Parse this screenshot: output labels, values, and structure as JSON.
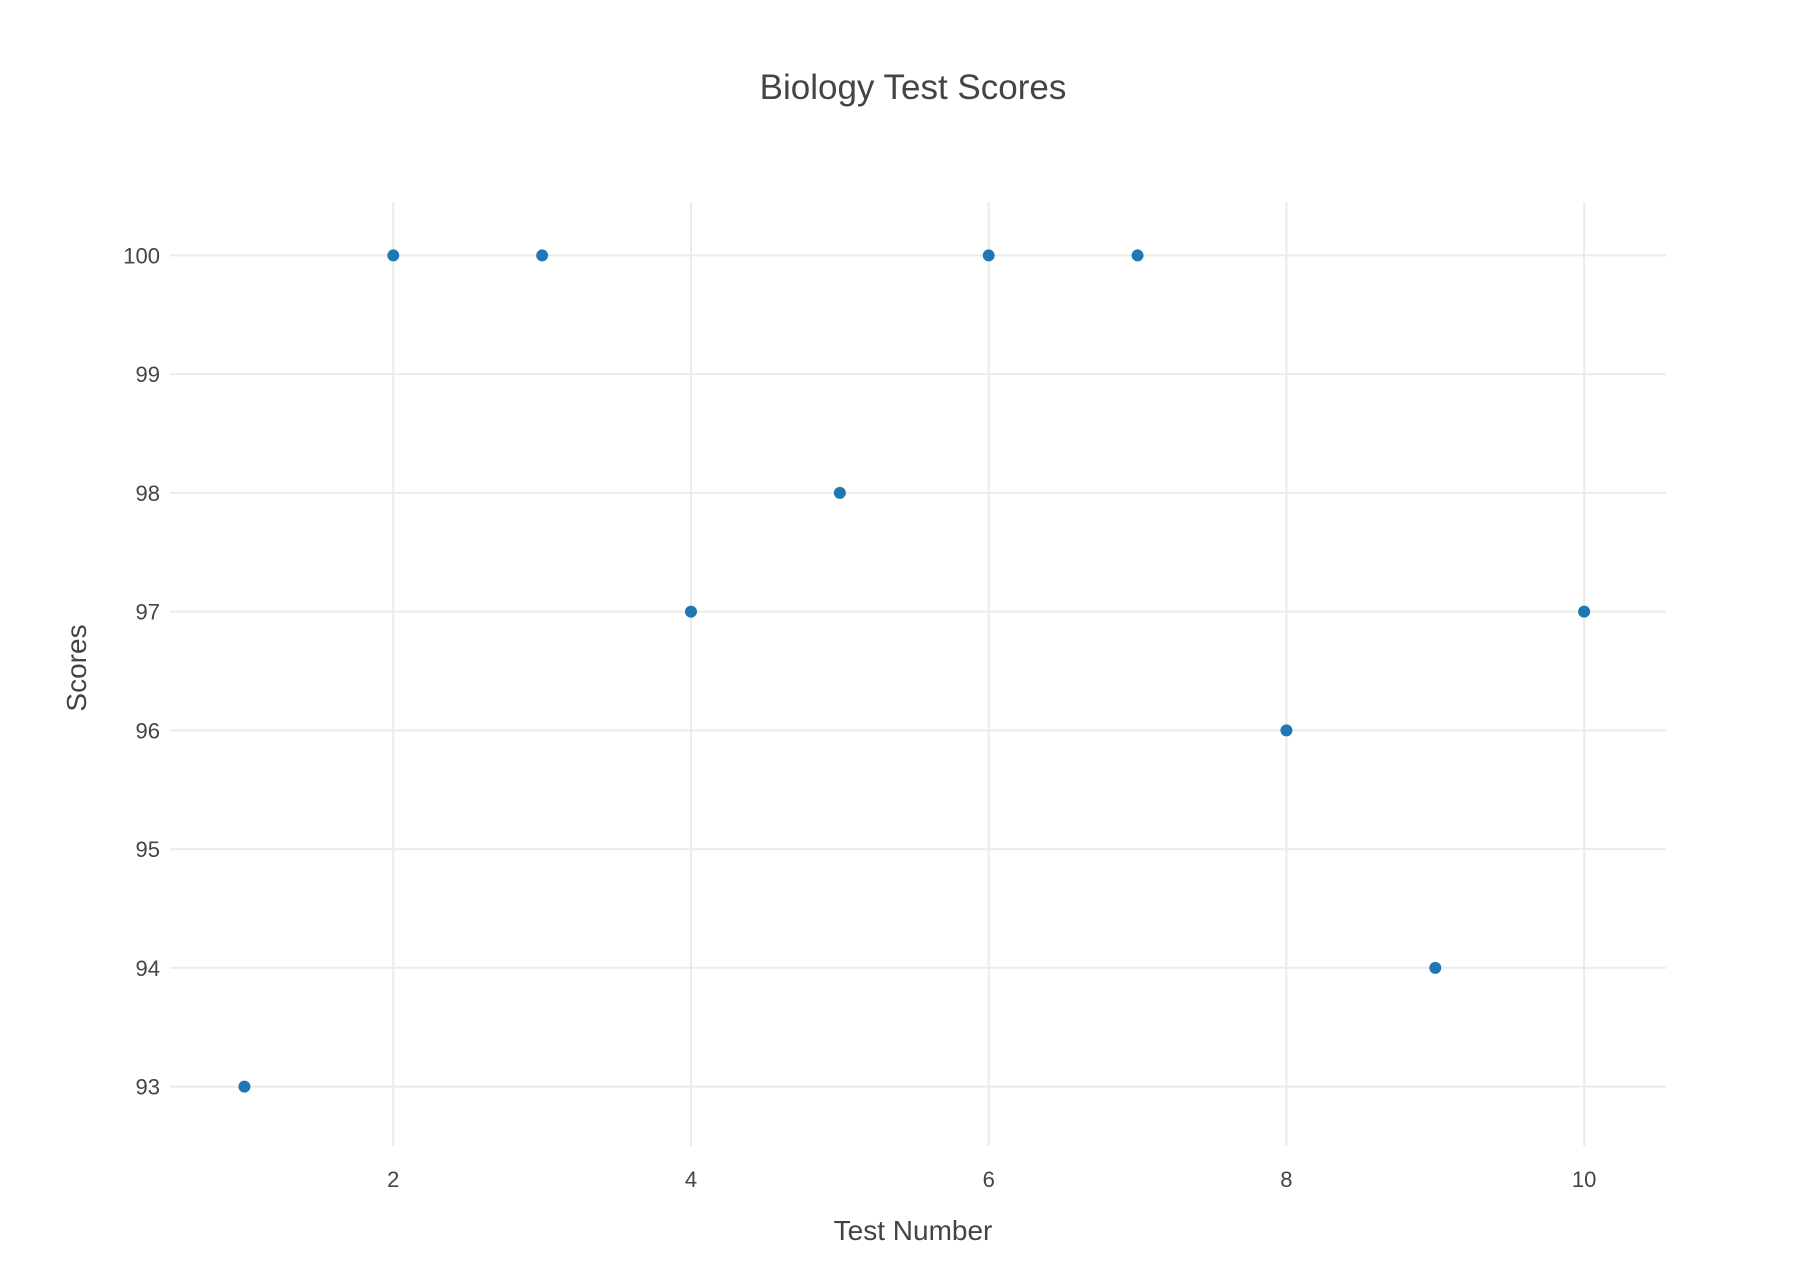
{
  "chart_data": {
    "type": "scatter",
    "title": "Biology Test Scores",
    "xlabel": "Test Number",
    "ylabel": "Scores",
    "xlim": [
      0.5,
      10.55
    ],
    "ylim": [
      92.5,
      100.45
    ],
    "xticks": [
      2,
      4,
      6,
      8,
      10
    ],
    "yticks": [
      93,
      94,
      95,
      96,
      97,
      98,
      99,
      100
    ],
    "grid": true,
    "legend": "none",
    "marker_color": "#1f77b4",
    "series": [
      {
        "x": [
          1,
          2,
          3,
          4,
          5,
          6,
          7,
          8,
          9,
          10
        ],
        "y": [
          93,
          100,
          100,
          97,
          98,
          100,
          100,
          96,
          94,
          97
        ]
      }
    ]
  }
}
